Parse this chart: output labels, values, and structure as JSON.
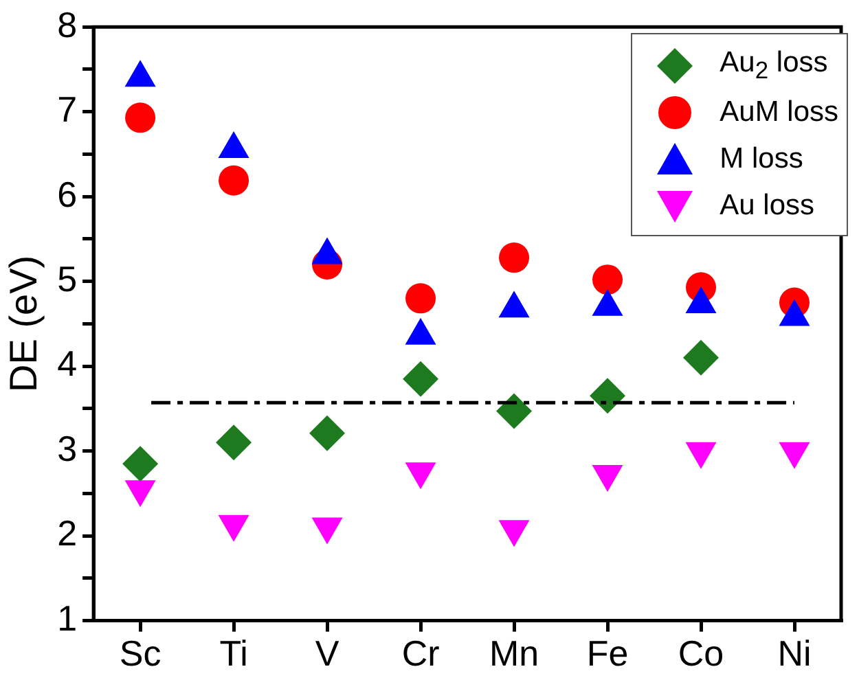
{
  "chart_data": {
    "type": "scatter",
    "ylabel": "DE (eV)",
    "categories": [
      "Sc",
      "Ti",
      "V",
      "Cr",
      "Mn",
      "Fe",
      "Co",
      "Ni"
    ],
    "series": [
      {
        "name": "Au$_{2}$ loss",
        "color": "#1e7a1e",
        "marker": "diamond",
        "values": [
          2.85,
          3.1,
          3.21,
          3.85,
          3.47,
          3.65,
          4.1,
          null
        ]
      },
      {
        "name": "AuM loss",
        "color": "#ff0000",
        "marker": "circle",
        "values": [
          6.93,
          6.19,
          5.2,
          4.8,
          5.28,
          5.02,
          4.93,
          4.75
        ]
      },
      {
        "name": "M loss",
        "color": "#0000ff",
        "marker": "triangle",
        "values": [
          7.4,
          6.56,
          5.31,
          4.36,
          4.68,
          4.7,
          4.73,
          4.58
        ]
      },
      {
        "name": "Au loss",
        "color": "#ff00ff",
        "marker": "triangle-down",
        "values": [
          2.55,
          2.14,
          2.11,
          2.76,
          2.08,
          2.73,
          3.0,
          3.0
        ]
      }
    ],
    "ylim": [
      1,
      8
    ],
    "yticks": [
      1,
      {
        "value": 1.5,
        "label": null
      },
      2,
      {
        "value": 2.5,
        "label": null
      },
      3,
      {
        "value": 3.5,
        "label": null
      },
      4,
      {
        "value": 4.5,
        "label": null
      },
      5,
      {
        "value": 5.5,
        "label": null
      },
      6,
      {
        "value": 6.5,
        "label": null
      },
      7,
      {
        "value": 7.5,
        "label": null
      },
      8
    ],
    "ref_lines": [
      {
        "axis": "y",
        "value": 3.57,
        "color": "#000000",
        "line_style": "dashed"
      }
    ],
    "grid": false,
    "legend": "top right"
  }
}
